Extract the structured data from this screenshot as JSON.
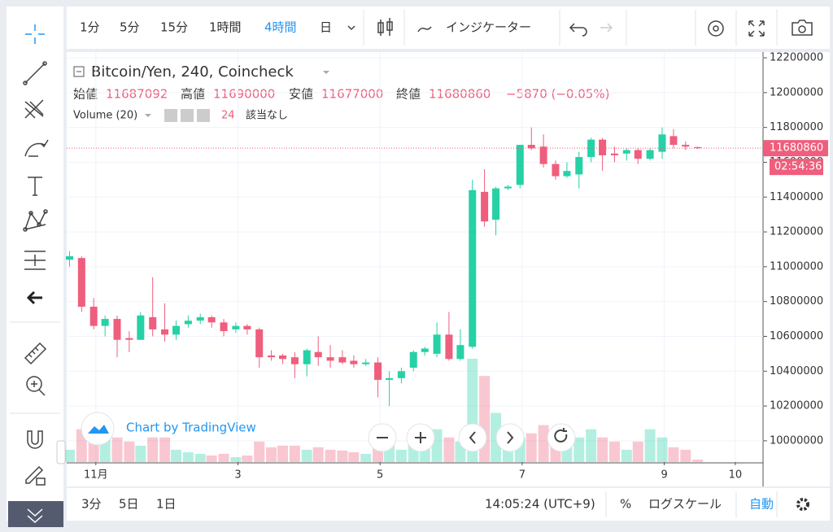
{
  "toolbar": {
    "intervals": [
      "1分",
      "5分",
      "15分",
      "1時間",
      "4時間",
      "日"
    ],
    "indicators": "インジケーター"
  },
  "bottom_bar": {
    "ranges": [
      "3分",
      "5日",
      "1日"
    ],
    "clock": "14:05:24 (UTC+9)",
    "percent": "%",
    "log_scale": "ログスケール",
    "auto": "自動"
  },
  "chart_data": {
    "type": "candlestick",
    "title": "Bitcoin/Yen, 240, Coincheck",
    "ohlc_labels": [
      "始値",
      "高値",
      "安値",
      "終値"
    ],
    "change": "−5870 (−0.05%)",
    "volume_label": "Volume (20)",
    "volume_status": "該当なし",
    "countdown": "02:54:36",
    "watermark": "Chart by TradingView",
    "up_color": "#26d1a6",
    "down_color": "#ef5e7c",
    "x": [
      0.63,
      0.8,
      0.97,
      1.13,
      1.3,
      1.47,
      1.63,
      1.8,
      1.97,
      2.13,
      2.3,
      2.47,
      2.63,
      2.8,
      2.97,
      3.13,
      3.3,
      3.47,
      3.63,
      3.8,
      3.97,
      4.13,
      4.3,
      4.47,
      4.63,
      4.8,
      4.97,
      5.13,
      5.3,
      5.47,
      5.63,
      5.8,
      5.97,
      6.13,
      6.3,
      6.47,
      6.63,
      6.8,
      6.97,
      7.13,
      7.3,
      7.47,
      7.63,
      7.8,
      7.97,
      8.13,
      8.3,
      8.47,
      8.63,
      8.8,
      8.97,
      9.13,
      9.3,
      9.47
    ],
    "open": [
      11040000,
      11050000,
      10770000,
      10660000,
      10700000,
      10590000,
      10580000,
      10710000,
      10640000,
      10610000,
      10670000,
      10690000,
      10710000,
      10680000,
      10640000,
      10660000,
      10640000,
      10490000,
      10490000,
      10480000,
      10440000,
      10510000,
      10480000,
      10480000,
      10460000,
      10440000,
      10450000,
      10350000,
      10360000,
      10420000,
      10510000,
      10500000,
      10610000,
      10470000,
      10540000,
      11430000,
      11270000,
      11450000,
      11470000,
      11700000,
      11690000,
      11590000,
      11520000,
      11530000,
      11630000,
      11730000,
      11650000,
      11650000,
      11670000,
      11620000,
      11660000,
      11750000,
      11700000,
      11687092
    ],
    "high": [
      11090000,
      11060000,
      10820000,
      10720000,
      10720000,
      10630000,
      10740000,
      10940000,
      10790000,
      10690000,
      10720000,
      10730000,
      10720000,
      10700000,
      10680000,
      10670000,
      10650000,
      10520000,
      10500000,
      10510000,
      10530000,
      10600000,
      10550000,
      10520000,
      10490000,
      10470000,
      10480000,
      10400000,
      10420000,
      10520000,
      10540000,
      10680000,
      10740000,
      10640000,
      11500000,
      11560000,
      11460000,
      11470000,
      11700000,
      11800000,
      11760000,
      11610000,
      11600000,
      11660000,
      11740000,
      11740000,
      11690000,
      11680000,
      11680000,
      11680000,
      11800000,
      11790000,
      11720000,
      11690000
    ],
    "low": [
      11000000,
      10740000,
      10640000,
      10600000,
      10480000,
      10510000,
      10580000,
      10600000,
      10570000,
      10580000,
      10650000,
      10670000,
      10650000,
      10600000,
      10620000,
      10610000,
      10420000,
      10460000,
      10440000,
      10360000,
      10370000,
      10430000,
      10420000,
      10440000,
      10420000,
      10430000,
      10250000,
      10200000,
      10330000,
      10400000,
      10490000,
      10480000,
      10460000,
      10460000,
      10530000,
      11230000,
      11180000,
      11440000,
      11450000,
      11670000,
      11570000,
      11500000,
      11510000,
      11450000,
      11600000,
      11550000,
      11600000,
      11610000,
      11590000,
      11610000,
      11620000,
      11680000,
      11670000,
      11677000
    ],
    "close": [
      11060000,
      10770000,
      10660000,
      10700000,
      10580000,
      10580000,
      10720000,
      10640000,
      10610000,
      10660000,
      10690000,
      10710000,
      10680000,
      10630000,
      10660000,
      10640000,
      10480000,
      10480000,
      10470000,
      10440000,
      10520000,
      10480000,
      10460000,
      10450000,
      10440000,
      10450000,
      10350000,
      10360000,
      10400000,
      10510000,
      10530000,
      10610000,
      10470000,
      10550000,
      11440000,
      11260000,
      11450000,
      11460000,
      11700000,
      11680000,
      11590000,
      11520000,
      11550000,
      11630000,
      11730000,
      11640000,
      11640000,
      11670000,
      11620000,
      11670000,
      11760000,
      11700000,
      11690000,
      11680860
    ],
    "volume": [
      120,
      320,
      200,
      280,
      240,
      200,
      160,
      240,
      240,
      120,
      96,
      80,
      64,
      80,
      48,
      64,
      200,
      144,
      160,
      160,
      120,
      144,
      120,
      112,
      96,
      80,
      160,
      200,
      120,
      240,
      200,
      320,
      240,
      200,
      1008,
      840,
      480,
      280,
      240,
      280,
      360,
      320,
      200,
      240,
      320,
      240,
      200,
      120,
      200,
      320,
      240,
      144,
      120,
      24
    ],
    "volume_ylim": [
      0,
      4000
    ],
    "ylim": [
      9878000,
      12233000
    ],
    "yticks": [
      10000000,
      10200000,
      10400000,
      10600000,
      10800000,
      11000000,
      11200000,
      11400000,
      11600000,
      11800000,
      12000000,
      12200000
    ],
    "xlim": [
      0.59,
      10.39
    ],
    "xticks": [
      {
        "value": 1,
        "label": "11月"
      },
      3,
      5,
      7,
      9,
      10
    ]
  }
}
